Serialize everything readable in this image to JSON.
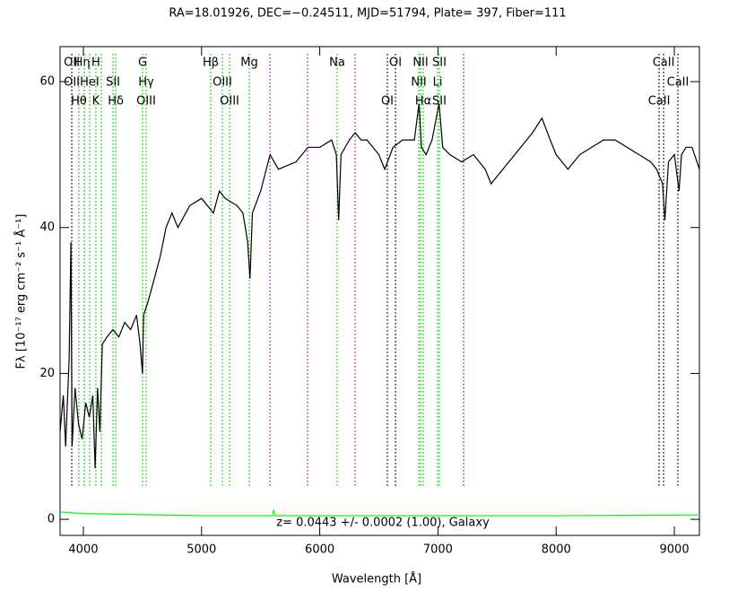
{
  "chart_data": {
    "type": "line",
    "title": "RA=18.01926, DEC=−0.24511, MJD=51794, Plate= 397, Fiber=111",
    "x_label": "Wavelength [Å]",
    "y_label": "Fλ [10⁻¹⁷ erg cm⁻² s⁻¹ Å⁻¹]",
    "annotation": "z= 0.0443 +/- 0.0002 (1.00), Galaxy",
    "xlim": [
      3803,
      9212
    ],
    "ylim": [
      -2.2,
      64.8
    ],
    "xticks": [
      4000,
      5000,
      6000,
      7000,
      8000,
      9000
    ],
    "yticks": [
      0,
      20,
      40,
      60
    ],
    "series": [
      {
        "color": "#000000",
        "x": [
          3803,
          3830,
          3850,
          3880,
          3895,
          3905,
          3930,
          3960,
          3990,
          4020,
          4050,
          4080,
          4100,
          4120,
          4140,
          4160,
          4200,
          4250,
          4300,
          4350,
          4400,
          4450,
          4480,
          4500,
          4510,
          4550,
          4600,
          4650,
          4700,
          4750,
          4800,
          4900,
          5000,
          5100,
          5150,
          5200,
          5300,
          5350,
          5390,
          5410,
          5430,
          5500,
          5580,
          5650,
          5800,
          5900,
          6000,
          6100,
          6140,
          6160,
          6180,
          6250,
          6300,
          6350,
          6400,
          6500,
          6550,
          6620,
          6700,
          6800,
          6840,
          6860,
          6900,
          6950,
          7010,
          7040,
          7100,
          7200,
          7300,
          7400,
          7450,
          7500,
          7600,
          7700,
          7800,
          7880,
          7950,
          8000,
          8100,
          8200,
          8300,
          8400,
          8500,
          8600,
          8700,
          8800,
          8850,
          8900,
          8920,
          8950,
          9000,
          9040,
          9060,
          9100,
          9150,
          9212
        ],
        "values": [
          12,
          17,
          10,
          22,
          38,
          10,
          18,
          13,
          11,
          16,
          14,
          17,
          7,
          18,
          12,
          24,
          25,
          26,
          25,
          27,
          26,
          28,
          24,
          20,
          28,
          30,
          33,
          36,
          40,
          42,
          40,
          43,
          44,
          42,
          45,
          44,
          43,
          42,
          38,
          33,
          42,
          45,
          50,
          48,
          49,
          51,
          51,
          52,
          50,
          41,
          50,
          52,
          53,
          52,
          52,
          50,
          48,
          51,
          52,
          52,
          57,
          51,
          50,
          52,
          57,
          51,
          50,
          49,
          50,
          48,
          46,
          47,
          49,
          51,
          53,
          55,
          52,
          50,
          48,
          50,
          51,
          52,
          52,
          51,
          50,
          49,
          48,
          46,
          41,
          49,
          50,
          45,
          50,
          51,
          51,
          48
        ]
      },
      {
        "color": "#00ff00",
        "x": [
          3803,
          4000,
          5000,
          5600,
          5610,
          5620,
          8000,
          9212
        ],
        "values": [
          1.0,
          0.8,
          0.5,
          0.5,
          1.3,
          0.5,
          0.5,
          0.6
        ]
      }
    ],
    "lines": [
      {
        "wavelength": 3902,
        "color": "#000000"
      },
      {
        "wavelength": 3962,
        "color": "#00cc00"
      },
      {
        "wavelength": 4008,
        "color": "#00cc00"
      },
      {
        "wavelength": 4053,
        "color": "#00cc00"
      },
      {
        "wavelength": 4106,
        "color": "#00cc00"
      },
      {
        "wavelength": 4152,
        "color": "#00cc00"
      },
      {
        "wavelength": 4251,
        "color": "#00cc00"
      },
      {
        "wavelength": 4274,
        "color": "#00cc00"
      },
      {
        "wavelength": 4501,
        "color": "#00cc00"
      },
      {
        "wavelength": 4531,
        "color": "#00cc00"
      },
      {
        "wavelength": 5078,
        "color": "#00cc00"
      },
      {
        "wavelength": 5176,
        "color": "#00cc00"
      },
      {
        "wavelength": 5237,
        "color": "#00cc00"
      },
      {
        "wavelength": 5404,
        "color": "#00cc00"
      },
      {
        "wavelength": 5579,
        "color": "#cc00cc"
      },
      {
        "wavelength": 5897,
        "color": "#cc00cc"
      },
      {
        "wavelength": 6147,
        "color": "#00cc00"
      },
      {
        "wavelength": 6299,
        "color": "#cc00cc"
      },
      {
        "wavelength": 6572,
        "color": "#000000"
      },
      {
        "wavelength": 6641,
        "color": "#000000"
      },
      {
        "wavelength": 6838,
        "color": "#00cc00"
      },
      {
        "wavelength": 6853,
        "color": "#00cc00"
      },
      {
        "wavelength": 6876,
        "color": "#00cc00"
      },
      {
        "wavelength": 6997,
        "color": "#00cc00"
      },
      {
        "wavelength": 7012,
        "color": "#00cc00"
      },
      {
        "wavelength": 7217,
        "color": "#cc00cc"
      },
      {
        "wavelength": 8871,
        "color": "#000000"
      },
      {
        "wavelength": 8909,
        "color": "#000000"
      },
      {
        "wavelength": 9030,
        "color": "#000000"
      }
    ],
    "label_rows": [
      [
        {
          "text": "OII",
          "wavelength": 3902
        },
        {
          "text": "Hη",
          "wavelength": 3990
        },
        {
          "text": "H",
          "wavelength": 4106
        },
        {
          "text": "G",
          "wavelength": 4501
        },
        {
          "text": "Hβ",
          "wavelength": 5078
        },
        {
          "text": "Mg",
          "wavelength": 5404
        },
        {
          "text": "Na",
          "wavelength": 6147
        },
        {
          "text": "OI",
          "wavelength": 6641
        },
        {
          "text": "NII",
          "wavelength": 6853
        },
        {
          "text": "SII",
          "wavelength": 7012
        },
        {
          "text": "CaII",
          "wavelength": 8909
        }
      ],
      [
        {
          "text": "OII",
          "wavelength": 3902
        },
        {
          "text": "HeI",
          "wavelength": 4053
        },
        {
          "text": "SII",
          "wavelength": 4251
        },
        {
          "text": "Hγ",
          "wavelength": 4531
        },
        {
          "text": "OIII",
          "wavelength": 5176
        },
        {
          "text": "NII",
          "wavelength": 6838
        },
        {
          "text": "Li",
          "wavelength": 6997
        },
        {
          "text": "CaII",
          "wavelength": 9030
        }
      ],
      [
        {
          "text": "Hθ",
          "wavelength": 3962
        },
        {
          "text": "K",
          "wavelength": 4106
        },
        {
          "text": "Hδ",
          "wavelength": 4274
        },
        {
          "text": "OIII",
          "wavelength": 4531
        },
        {
          "text": "OIII",
          "wavelength": 5237
        },
        {
          "text": "OI",
          "wavelength": 6572
        },
        {
          "text": "Hα",
          "wavelength": 6876
        },
        {
          "text": "SII",
          "wavelength": 7012
        },
        {
          "text": "CaII",
          "wavelength": 8871
        }
      ]
    ]
  }
}
